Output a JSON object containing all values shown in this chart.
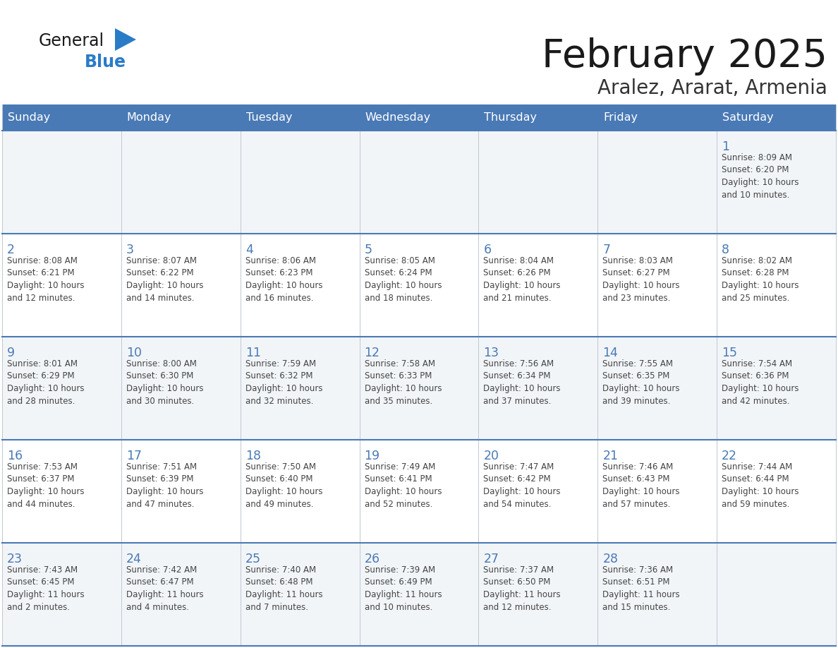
{
  "title": "February 2025",
  "subtitle": "Aralez, Ararat, Armenia",
  "header_color": "#4a7ab5",
  "header_text_color": "#ffffff",
  "grid_color": "#4a7ab5",
  "day_number_color": "#4a7ab5",
  "text_color": "#444444",
  "logo_general_color": "#1a1a1a",
  "logo_blue_color": "#2a7cc7",
  "logo_triangle_color": "#2a7cc7",
  "title_color": "#1a1a1a",
  "subtitle_color": "#333333",
  "row_alt_color": "#f2f5f8",
  "row_normal_color": "#ffffff",
  "days_of_week": [
    "Sunday",
    "Monday",
    "Tuesday",
    "Wednesday",
    "Thursday",
    "Friday",
    "Saturday"
  ],
  "weeks": [
    [
      {
        "day": null,
        "info": null
      },
      {
        "day": null,
        "info": null
      },
      {
        "day": null,
        "info": null
      },
      {
        "day": null,
        "info": null
      },
      {
        "day": null,
        "info": null
      },
      {
        "day": null,
        "info": null
      },
      {
        "day": "1",
        "info": "Sunrise: 8:09 AM\nSunset: 6:20 PM\nDaylight: 10 hours\nand 10 minutes."
      }
    ],
    [
      {
        "day": "2",
        "info": "Sunrise: 8:08 AM\nSunset: 6:21 PM\nDaylight: 10 hours\nand 12 minutes."
      },
      {
        "day": "3",
        "info": "Sunrise: 8:07 AM\nSunset: 6:22 PM\nDaylight: 10 hours\nand 14 minutes."
      },
      {
        "day": "4",
        "info": "Sunrise: 8:06 AM\nSunset: 6:23 PM\nDaylight: 10 hours\nand 16 minutes."
      },
      {
        "day": "5",
        "info": "Sunrise: 8:05 AM\nSunset: 6:24 PM\nDaylight: 10 hours\nand 18 minutes."
      },
      {
        "day": "6",
        "info": "Sunrise: 8:04 AM\nSunset: 6:26 PM\nDaylight: 10 hours\nand 21 minutes."
      },
      {
        "day": "7",
        "info": "Sunrise: 8:03 AM\nSunset: 6:27 PM\nDaylight: 10 hours\nand 23 minutes."
      },
      {
        "day": "8",
        "info": "Sunrise: 8:02 AM\nSunset: 6:28 PM\nDaylight: 10 hours\nand 25 minutes."
      }
    ],
    [
      {
        "day": "9",
        "info": "Sunrise: 8:01 AM\nSunset: 6:29 PM\nDaylight: 10 hours\nand 28 minutes."
      },
      {
        "day": "10",
        "info": "Sunrise: 8:00 AM\nSunset: 6:30 PM\nDaylight: 10 hours\nand 30 minutes."
      },
      {
        "day": "11",
        "info": "Sunrise: 7:59 AM\nSunset: 6:32 PM\nDaylight: 10 hours\nand 32 minutes."
      },
      {
        "day": "12",
        "info": "Sunrise: 7:58 AM\nSunset: 6:33 PM\nDaylight: 10 hours\nand 35 minutes."
      },
      {
        "day": "13",
        "info": "Sunrise: 7:56 AM\nSunset: 6:34 PM\nDaylight: 10 hours\nand 37 minutes."
      },
      {
        "day": "14",
        "info": "Sunrise: 7:55 AM\nSunset: 6:35 PM\nDaylight: 10 hours\nand 39 minutes."
      },
      {
        "day": "15",
        "info": "Sunrise: 7:54 AM\nSunset: 6:36 PM\nDaylight: 10 hours\nand 42 minutes."
      }
    ],
    [
      {
        "day": "16",
        "info": "Sunrise: 7:53 AM\nSunset: 6:37 PM\nDaylight: 10 hours\nand 44 minutes."
      },
      {
        "day": "17",
        "info": "Sunrise: 7:51 AM\nSunset: 6:39 PM\nDaylight: 10 hours\nand 47 minutes."
      },
      {
        "day": "18",
        "info": "Sunrise: 7:50 AM\nSunset: 6:40 PM\nDaylight: 10 hours\nand 49 minutes."
      },
      {
        "day": "19",
        "info": "Sunrise: 7:49 AM\nSunset: 6:41 PM\nDaylight: 10 hours\nand 52 minutes."
      },
      {
        "day": "20",
        "info": "Sunrise: 7:47 AM\nSunset: 6:42 PM\nDaylight: 10 hours\nand 54 minutes."
      },
      {
        "day": "21",
        "info": "Sunrise: 7:46 AM\nSunset: 6:43 PM\nDaylight: 10 hours\nand 57 minutes."
      },
      {
        "day": "22",
        "info": "Sunrise: 7:44 AM\nSunset: 6:44 PM\nDaylight: 10 hours\nand 59 minutes."
      }
    ],
    [
      {
        "day": "23",
        "info": "Sunrise: 7:43 AM\nSunset: 6:45 PM\nDaylight: 11 hours\nand 2 minutes."
      },
      {
        "day": "24",
        "info": "Sunrise: 7:42 AM\nSunset: 6:47 PM\nDaylight: 11 hours\nand 4 minutes."
      },
      {
        "day": "25",
        "info": "Sunrise: 7:40 AM\nSunset: 6:48 PM\nDaylight: 11 hours\nand 7 minutes."
      },
      {
        "day": "26",
        "info": "Sunrise: 7:39 AM\nSunset: 6:49 PM\nDaylight: 11 hours\nand 10 minutes."
      },
      {
        "day": "27",
        "info": "Sunrise: 7:37 AM\nSunset: 6:50 PM\nDaylight: 11 hours\nand 12 minutes."
      },
      {
        "day": "28",
        "info": "Sunrise: 7:36 AM\nSunset: 6:51 PM\nDaylight: 11 hours\nand 15 minutes."
      },
      {
        "day": null,
        "info": null
      }
    ]
  ],
  "fig_width": 11.88,
  "fig_height": 9.18,
  "dpi": 100
}
